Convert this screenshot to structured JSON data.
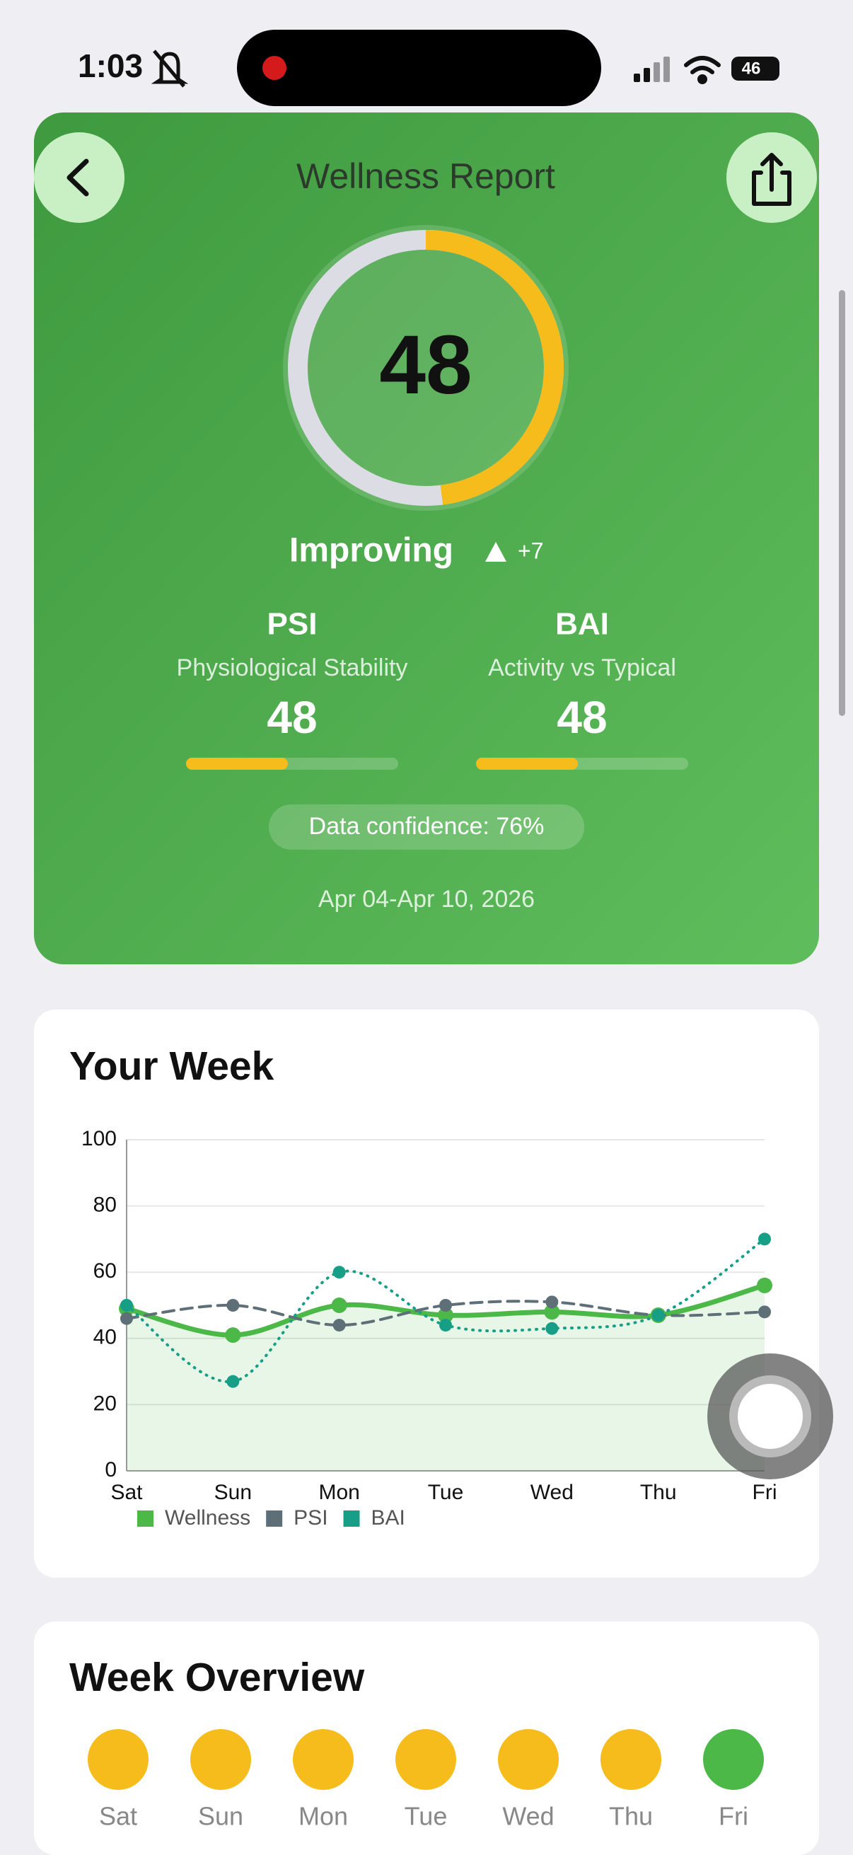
{
  "status_bar": {
    "time": "1:03",
    "battery": "46"
  },
  "header": {
    "title": "Wellness Report"
  },
  "score": {
    "value": 48,
    "range": [
      0,
      100
    ],
    "trend": "Improving",
    "delta": "+7"
  },
  "metrics": [
    {
      "name": "PSI",
      "subtitle": "Physiological Stability",
      "value": 48
    },
    {
      "name": "BAI",
      "subtitle": "Activity vs Typical",
      "value": 48
    }
  ],
  "confidence": "Data confidence: 76%",
  "date_range": "Apr 04-Apr 10, 2026",
  "chart_data": {
    "type": "line",
    "title": "Your Week",
    "categories": [
      "Sat",
      "Sun",
      "Mon",
      "Tue",
      "Wed",
      "Thu",
      "Fri"
    ],
    "ylim": [
      0,
      100
    ],
    "yticks": [
      0,
      20,
      40,
      60,
      80,
      100
    ],
    "grid": true,
    "series": [
      {
        "name": "Wellness",
        "color": "#4cb848",
        "style": "solid",
        "fill": true,
        "values": [
          49,
          41,
          50,
          47,
          48,
          47,
          56
        ]
      },
      {
        "name": "PSI",
        "color": "#5f6f78",
        "style": "dashed",
        "values": [
          46,
          50,
          44,
          50,
          51,
          47,
          48
        ]
      },
      {
        "name": "BAI",
        "color": "#169f86",
        "style": "dotted",
        "values": [
          50,
          27,
          60,
          44,
          43,
          47,
          70
        ]
      }
    ]
  },
  "week_overview": {
    "title": "Week Overview",
    "days": [
      {
        "label": "Sat",
        "color": "#f5bc1c"
      },
      {
        "label": "Sun",
        "color": "#f5bc1c"
      },
      {
        "label": "Mon",
        "color": "#f5bc1c"
      },
      {
        "label": "Tue",
        "color": "#f5bc1c"
      },
      {
        "label": "Wed",
        "color": "#f5bc1c"
      },
      {
        "label": "Thu",
        "color": "#f5bc1c"
      },
      {
        "label": "Fri",
        "color": "#4cb848"
      }
    ]
  }
}
